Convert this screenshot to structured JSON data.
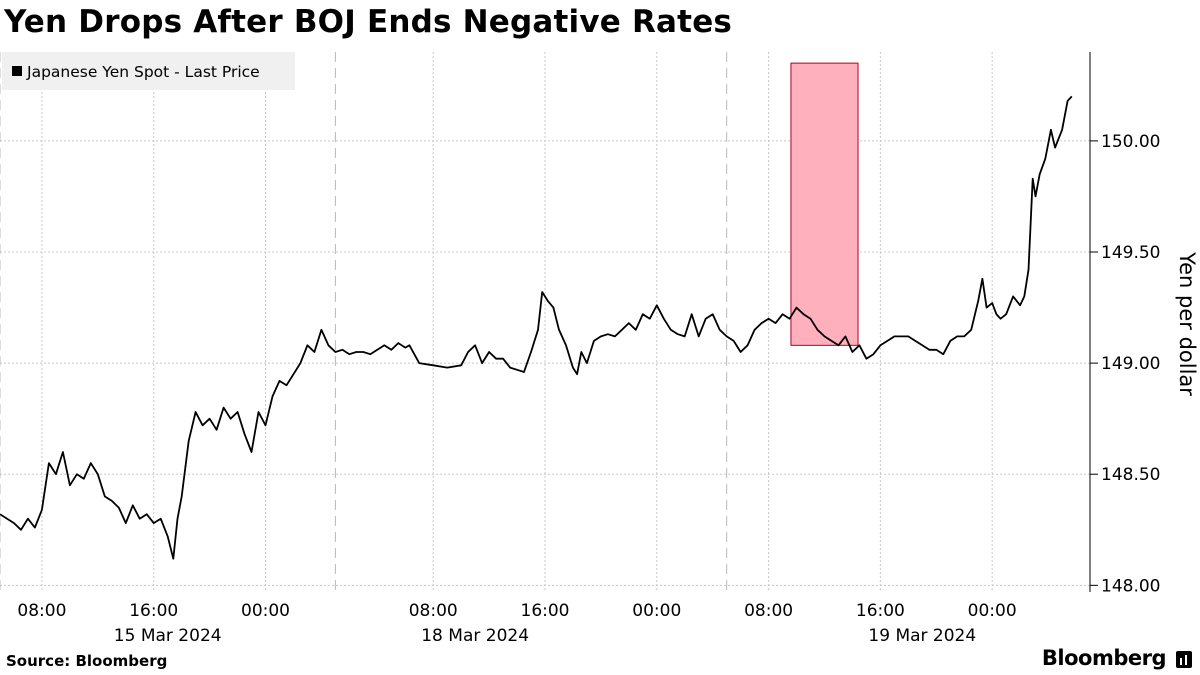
{
  "title": "Yen Drops After BOJ Ends Negative Rates",
  "source": "Source: Bloomberg",
  "brand": "Bloomberg",
  "chart_data": {
    "type": "line",
    "series": [
      {
        "name": "Japanese Yen Spot - Last Price",
        "color": "#000000",
        "points": [
          [
            0,
            148.32
          ],
          [
            1,
            148.28
          ],
          [
            1.5,
            148.25
          ],
          [
            2,
            148.3
          ],
          [
            2.5,
            148.26
          ],
          [
            3,
            148.34
          ],
          [
            3.5,
            148.55
          ],
          [
            4,
            148.5
          ],
          [
            4.5,
            148.6
          ],
          [
            5,
            148.45
          ],
          [
            5.5,
            148.5
          ],
          [
            6,
            148.48
          ],
          [
            6.5,
            148.55
          ],
          [
            7,
            148.5
          ],
          [
            7.5,
            148.4
          ],
          [
            8,
            148.38
          ],
          [
            8.5,
            148.35
          ],
          [
            9,
            148.28
          ],
          [
            9.5,
            148.36
          ],
          [
            10,
            148.3
          ],
          [
            10.5,
            148.32
          ],
          [
            11,
            148.28
          ],
          [
            11.5,
            148.3
          ],
          [
            12,
            148.22
          ],
          [
            12.4,
            148.12
          ],
          [
            12.7,
            148.3
          ],
          [
            13,
            148.4
          ],
          [
            13.5,
            148.65
          ],
          [
            14,
            148.78
          ],
          [
            14.5,
            148.72
          ],
          [
            15,
            148.75
          ],
          [
            15.5,
            148.7
          ],
          [
            16,
            148.8
          ],
          [
            16.5,
            148.75
          ],
          [
            17,
            148.78
          ],
          [
            17.5,
            148.68
          ],
          [
            18,
            148.6
          ],
          [
            18.5,
            148.78
          ],
          [
            19,
            148.72
          ],
          [
            19.5,
            148.85
          ],
          [
            20,
            148.92
          ],
          [
            20.5,
            148.9
          ],
          [
            21,
            148.95
          ],
          [
            21.5,
            149.0
          ],
          [
            22,
            149.08
          ],
          [
            22.5,
            149.05
          ],
          [
            23,
            149.15
          ],
          [
            23.5,
            149.08
          ],
          [
            24,
            149.05
          ],
          [
            24.5,
            149.06
          ],
          [
            25,
            149.04
          ],
          [
            25.5,
            149.05
          ],
          [
            26,
            149.05
          ],
          [
            26.5,
            149.04
          ],
          [
            27,
            149.06
          ],
          [
            27.5,
            149.08
          ],
          [
            28,
            149.06
          ],
          [
            28.5,
            149.09
          ],
          [
            29,
            149.07
          ],
          [
            29.3,
            149.08
          ],
          [
            30,
            149.0
          ],
          [
            31,
            148.99
          ],
          [
            32,
            148.98
          ],
          [
            33,
            148.99
          ],
          [
            33.5,
            149.05
          ],
          [
            34,
            149.08
          ],
          [
            34.5,
            149.0
          ],
          [
            35,
            149.05
          ],
          [
            35.5,
            149.02
          ],
          [
            36,
            149.02
          ],
          [
            36.5,
            148.98
          ],
          [
            37,
            148.97
          ],
          [
            37.5,
            148.96
          ],
          [
            38,
            149.05
          ],
          [
            38.5,
            149.15
          ],
          [
            38.8,
            149.32
          ],
          [
            39.2,
            149.28
          ],
          [
            39.6,
            149.25
          ],
          [
            40,
            149.15
          ],
          [
            40.5,
            149.08
          ],
          [
            41,
            148.98
          ],
          [
            41.3,
            148.95
          ],
          [
            41.6,
            149.05
          ],
          [
            42,
            149.0
          ],
          [
            42.5,
            149.1
          ],
          [
            43,
            149.12
          ],
          [
            43.5,
            149.13
          ],
          [
            44,
            149.12
          ],
          [
            44.5,
            149.15
          ],
          [
            45,
            149.18
          ],
          [
            45.5,
            149.15
          ],
          [
            46,
            149.22
          ],
          [
            46.5,
            149.2
          ],
          [
            47,
            149.26
          ],
          [
            47.5,
            149.2
          ],
          [
            48,
            149.15
          ],
          [
            48.5,
            149.13
          ],
          [
            49,
            149.12
          ],
          [
            49.5,
            149.22
          ],
          [
            50,
            149.12
          ],
          [
            50.5,
            149.2
          ],
          [
            51,
            149.22
          ],
          [
            51.5,
            149.15
          ],
          [
            52,
            149.12
          ],
          [
            52.5,
            149.1
          ],
          [
            53,
            149.05
          ],
          [
            53.5,
            149.08
          ],
          [
            54,
            149.15
          ],
          [
            54.5,
            149.18
          ],
          [
            55,
            149.2
          ],
          [
            55.5,
            149.18
          ],
          [
            56,
            149.22
          ],
          [
            56.5,
            149.2
          ],
          [
            57,
            149.25
          ],
          [
            57.5,
            149.22
          ],
          [
            58,
            149.2
          ],
          [
            58.5,
            149.15
          ],
          [
            59,
            149.12
          ],
          [
            59.5,
            149.1
          ],
          [
            60,
            149.08
          ],
          [
            60.5,
            149.12
          ],
          [
            61,
            149.05
          ],
          [
            61.5,
            149.08
          ],
          [
            62,
            149.02
          ],
          [
            62.5,
            149.04
          ],
          [
            63,
            149.08
          ],
          [
            63.5,
            149.1
          ],
          [
            64,
            149.12
          ],
          [
            64.5,
            149.12
          ],
          [
            65,
            149.12
          ],
          [
            65.5,
            149.1
          ],
          [
            66,
            149.08
          ],
          [
            66.5,
            149.06
          ],
          [
            67,
            149.06
          ],
          [
            67.5,
            149.04
          ],
          [
            68,
            149.1
          ],
          [
            68.5,
            149.12
          ],
          [
            69,
            149.12
          ],
          [
            69.5,
            149.15
          ],
          [
            70,
            149.28
          ],
          [
            70.3,
            149.38
          ],
          [
            70.6,
            149.25
          ],
          [
            71,
            149.27
          ],
          [
            71.3,
            149.22
          ],
          [
            71.6,
            149.2
          ],
          [
            72,
            149.22
          ],
          [
            72.5,
            149.3
          ],
          [
            73,
            149.26
          ],
          [
            73.3,
            149.3
          ],
          [
            73.6,
            149.42
          ],
          [
            73.9,
            149.83
          ],
          [
            74.1,
            149.75
          ],
          [
            74.4,
            149.85
          ],
          [
            74.8,
            149.92
          ],
          [
            75.2,
            150.05
          ],
          [
            75.5,
            149.97
          ],
          [
            76,
            150.05
          ],
          [
            76.4,
            150.18
          ],
          [
            76.7,
            150.2
          ]
        ]
      }
    ],
    "x_ticks": [
      {
        "x": 3,
        "label": "08:00"
      },
      {
        "x": 11,
        "label": "16:00"
      },
      {
        "x": 19,
        "label": "00:00"
      },
      {
        "x": 31,
        "label": "08:00"
      },
      {
        "x": 39,
        "label": "16:00"
      },
      {
        "x": 47,
        "label": "00:00"
      },
      {
        "x": 55,
        "label": "08:00"
      },
      {
        "x": 63,
        "label": "16:00"
      },
      {
        "x": 71,
        "label": "00:00"
      }
    ],
    "date_labels": [
      {
        "x": 12,
        "label": "15 Mar 2024"
      },
      {
        "x": 34,
        "label": "18 Mar 2024"
      },
      {
        "x": 66,
        "label": "19 Mar 2024"
      }
    ],
    "day_separators": [
      0,
      24,
      52
    ],
    "y_ticks": [
      148.0,
      148.5,
      149.0,
      149.5,
      150.0
    ],
    "y_tick_labels": [
      "148.00",
      "148.50",
      "149.00",
      "149.50",
      "150.00"
    ],
    "ylim": [
      147.97,
      150.4
    ],
    "ylabel": "Yen per dollar",
    "highlight": {
      "x_start": 56.6,
      "x_end": 61.4,
      "y_low": 149.08,
      "y_high": 150.35,
      "fill": "#ffb0bc",
      "stroke": "#b00020"
    },
    "legend_position": "top-left",
    "grid": "vertical-dotted"
  },
  "colors": {
    "line": "#000000",
    "highlight_fill": "#ffb0bc",
    "highlight_stroke": "#b00020",
    "legend_bg": "#f0f0f0"
  }
}
